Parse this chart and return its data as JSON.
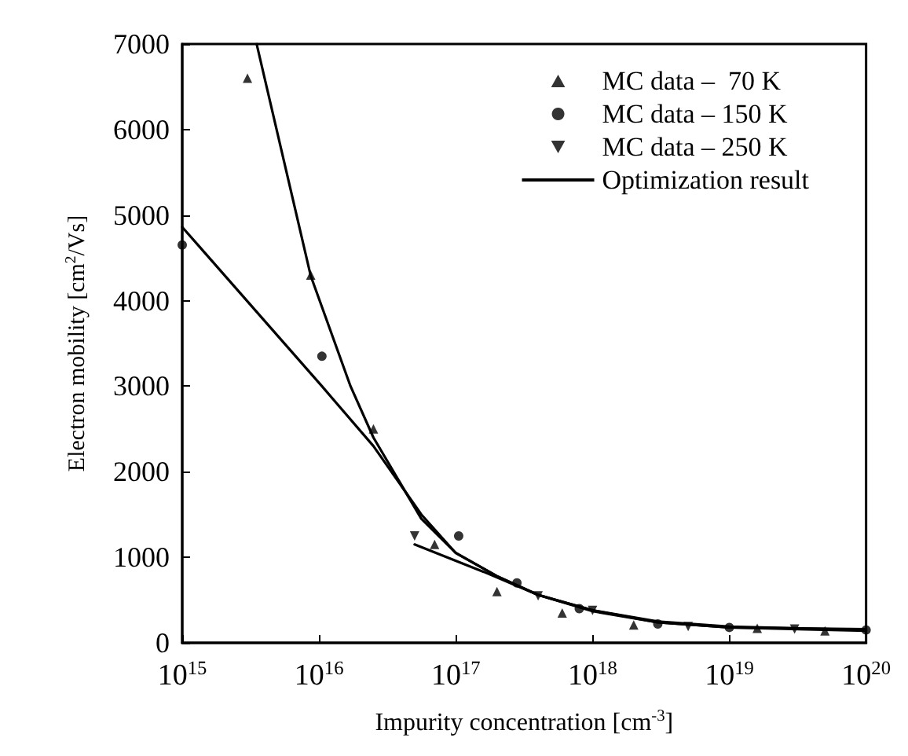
{
  "chart_data": {
    "type": "scatter",
    "xlabel": "Impurity concentration [cm$^{-3}$]",
    "ylabel": "Electron mobility [cm$^{2}$/Vs]",
    "log": "x",
    "xlim": [
      1000000000000000.0,
      1e+20
    ],
    "ylim": [
      0,
      7000
    ],
    "xticks": [
      {
        "value": 1000000000000000.0,
        "label": "10$^{15}$"
      },
      {
        "value": 1e+16,
        "label": "10$^{16}$"
      },
      {
        "value": 1e+17,
        "label": "10$^{17}$"
      },
      {
        "value": 1e+18,
        "label": "10$^{18}$"
      },
      {
        "value": 1e+19,
        "label": "10$^{19}$"
      },
      {
        "value": 1e+20,
        "label": "10$^{20}$"
      }
    ],
    "yticks": [
      0,
      1000,
      2000,
      3000,
      4000,
      5000,
      6000,
      7000
    ],
    "grid": false,
    "legend": "top right",
    "series": [
      {
        "name": "MC data –  70 K",
        "marker": "triangle",
        "color": "#000000",
        "x": [
          3000000000000000.0,
          8700000000000000.0,
          2.5e+16,
          7e+16,
          2e+17,
          6e+17,
          2e+18,
          1.6e+19,
          5e+19
        ],
        "values": [
          6600,
          4300,
          2500,
          1150,
          600,
          350,
          210,
          170,
          140
        ]
      },
      {
        "name": "MC data – 150 K",
        "marker": "circle",
        "color": "#000000",
        "x": [
          1000000000000000.0,
          1.05e+16,
          1.05e+17,
          2.8e+17,
          8e+17,
          3e+18,
          1e+19,
          1e+20
        ],
        "values": [
          4650,
          3350,
          1250,
          700,
          400,
          220,
          180,
          150
        ]
      },
      {
        "name": "MC data – 250 K",
        "marker": "triangle-down",
        "color": "#000000",
        "x": [
          5e+16,
          4e+17,
          1e+18,
          5e+18,
          3e+19
        ],
        "values": [
          1250,
          550,
          380,
          190,
          160
        ]
      },
      {
        "name": "Optimization result",
        "type": "line",
        "marker": "none",
        "color": "#000000",
        "x": [
          3500000000000000.0,
          8700000000000000.0,
          1.7e+16,
          2.5e+16,
          5.6e+16,
          1e+17,
          2e+17,
          4e+17,
          1e+18,
          3e+18,
          1e+19,
          1e+20
        ],
        "values": [
          7000,
          4290,
          3000,
          2400,
          1450,
          1050,
          780,
          560,
          380,
          250,
          190,
          150
        ]
      },
      {
        "type": "line",
        "marker": "none",
        "color": "#000000",
        "x": [
          1000000000000000.0,
          1.05e+16,
          2.5e+16,
          5.6e+16,
          1e+17,
          2e+17,
          4e+17,
          1e+18,
          3e+18,
          1e+19,
          1e+20
        ],
        "values": [
          4860,
          3000,
          2300,
          1500,
          1050,
          780,
          560,
          370,
          240,
          180,
          140
        ]
      },
      {
        "type": "line",
        "marker": "none",
        "color": "#000000",
        "x": [
          5e+16,
          1.6e+17,
          4e+17,
          1e+18,
          3e+18,
          1e+19,
          1e+20
        ],
        "values": [
          1150,
          830,
          560,
          380,
          240,
          180,
          160
        ]
      }
    ]
  }
}
